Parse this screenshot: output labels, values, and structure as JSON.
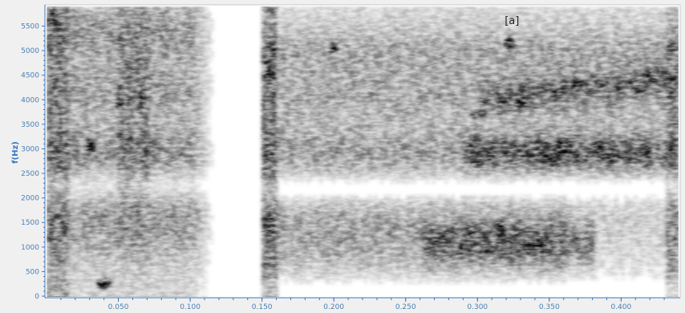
{
  "chart_data": {
    "type": "heatmap",
    "subtype": "spectrogram",
    "title": "",
    "xlabel": "",
    "ylabel": "f(Hz)",
    "xlim": [
      0.0,
      0.44
    ],
    "ylim": [
      0,
      5900
    ],
    "x_ticks": [
      "0.050",
      "0.100",
      "0.150",
      "0.200",
      "0.250",
      "0.300",
      "0.350",
      "0.400"
    ],
    "x_tick_values": [
      0.05,
      0.1,
      0.15,
      0.2,
      0.25,
      0.3,
      0.35,
      0.4
    ],
    "y_ticks": [
      "0",
      "500",
      "1000",
      "1500",
      "2000",
      "2500",
      "3000",
      "3500",
      "4000",
      "4500",
      "5000",
      "5500"
    ],
    "y_tick_values": [
      0,
      500,
      1000,
      1500,
      2000,
      2500,
      3000,
      3500,
      4000,
      4500,
      5000,
      5500
    ],
    "colormap": "grayscale-inverted",
    "annotation": {
      "text": "[a]",
      "x": 0.324,
      "y": 5800
    },
    "energy_regions": [
      {
        "t0": 0.005,
        "t1": 0.115,
        "f0": 0,
        "f1": 5900,
        "intensity": 0.45
      },
      {
        "t0": 0.148,
        "t1": 0.44,
        "f0": 0,
        "f1": 5900,
        "intensity": 0.4
      },
      {
        "t0": 0.26,
        "t1": 0.38,
        "f0": 600,
        "f1": 1700,
        "intensity": 0.75
      },
      {
        "t0": 0.29,
        "t1": 0.42,
        "f0": 2400,
        "f1": 3300,
        "intensity": 0.75
      },
      {
        "t0": 0.3,
        "t1": 0.42,
        "f0": 3600,
        "f1": 4500,
        "intensity": 0.7
      }
    ]
  }
}
